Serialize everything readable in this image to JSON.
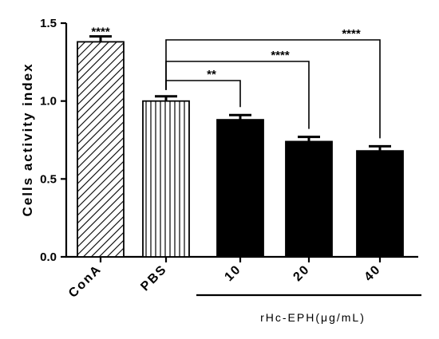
{
  "chart_data": {
    "type": "bar",
    "title": "",
    "xlabel": "",
    "ylabel": "Cells activity index",
    "ylim": [
      0,
      1.5
    ],
    "yticks": [
      "0.0",
      "0.5",
      "1.0",
      "1.5"
    ],
    "categories": [
      "ConA",
      "PBS",
      "10",
      "20",
      "40"
    ],
    "values": [
      1.38,
      1.0,
      0.88,
      0.74,
      0.68
    ],
    "errors": [
      0.035,
      0.03,
      0.03,
      0.03,
      0.03
    ],
    "bar_fills": [
      "diagonal-hatch",
      "vertical-lines",
      "solid-black",
      "solid-black",
      "solid-black"
    ],
    "group_label": "rHc-EPH(μg/mL)",
    "group_categories": [
      "10",
      "20",
      "40"
    ],
    "significance": [
      {
        "target": "ConA",
        "label": "****"
      },
      {
        "from": "PBS",
        "to": "10",
        "label": "**"
      },
      {
        "from": "PBS",
        "to": "20",
        "label": "****"
      },
      {
        "from": "PBS",
        "to": "40",
        "label": "****"
      }
    ],
    "grid": false,
    "legend": "none"
  }
}
